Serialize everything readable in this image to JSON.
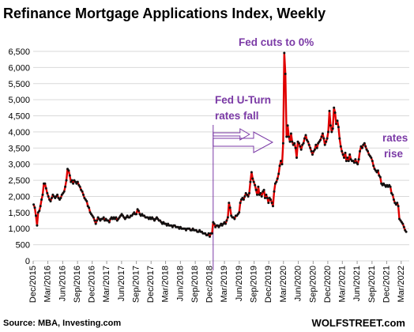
{
  "chart_data": {
    "type": "line",
    "title": "Refinance Mortgage Applications Index, Weekly",
    "ylim": [
      0,
      6500
    ],
    "y_ticks": [
      "0",
      "500",
      "1,000",
      "1,500",
      "2,000",
      "2,500",
      "3,000",
      "3,500",
      "4,000",
      "4,500",
      "5,000",
      "5,500",
      "6,000",
      "6,500"
    ],
    "x_ticks": [
      "Dec/2015",
      "Mar/2016",
      "Jun/2016",
      "Sep/2016",
      "Dec/2016",
      "Mar/2017",
      "Jun/2017",
      "Sep/2017",
      "Dec/2017",
      "Mar/2018",
      "Jun/2018",
      "Sep/2018",
      "Dec/2018",
      "Mar/2019",
      "Jun/2019",
      "Sep/2019",
      "Dec/2019",
      "Mar/2020",
      "Jun/2020",
      "Sep/2020",
      "Dec/2020",
      "Mar/2021",
      "Jun/2021",
      "Sep/2021",
      "Dec/2021",
      "Mar/2022"
    ],
    "grid": true,
    "series_color": "#e00000",
    "marker_color": "#111111",
    "annotations": [
      {
        "text": "Fed cuts to 0%"
      },
      {
        "text": "Fed U-Turn"
      },
      {
        "text": "rates fall"
      },
      {
        "text": "rates"
      },
      {
        "text": "rise"
      }
    ],
    "source": "Source: MBA, Investing.com",
    "brand": "WOLFSTREET.com",
    "points": [
      [
        "2015-12-04",
        1750
      ],
      [
        "2015-12-11",
        1650
      ],
      [
        "2015-12-18",
        1400
      ],
      [
        "2015-12-25",
        1100
      ],
      [
        "2016-01-01",
        1500
      ],
      [
        "2016-01-08",
        1550
      ],
      [
        "2016-01-15",
        1700
      ],
      [
        "2016-01-22",
        1900
      ],
      [
        "2016-01-29",
        2050
      ],
      [
        "2016-02-05",
        2400
      ],
      [
        "2016-02-12",
        2400
      ],
      [
        "2016-02-19",
        2250
      ],
      [
        "2016-02-26",
        2100
      ],
      [
        "2016-03-04",
        2000
      ],
      [
        "2016-03-11",
        1900
      ],
      [
        "2016-03-18",
        1850
      ],
      [
        "2016-03-25",
        1950
      ],
      [
        "2016-04-01",
        2050
      ],
      [
        "2016-04-08",
        2000
      ],
      [
        "2016-04-15",
        1950
      ],
      [
        "2016-04-22",
        2000
      ],
      [
        "2016-04-29",
        2050
      ],
      [
        "2016-05-06",
        1950
      ],
      [
        "2016-05-13",
        1900
      ],
      [
        "2016-05-20",
        1950
      ],
      [
        "2016-05-27",
        2050
      ],
      [
        "2016-06-03",
        2100
      ],
      [
        "2016-06-10",
        2150
      ],
      [
        "2016-06-17",
        2300
      ],
      [
        "2016-06-24",
        2500
      ],
      [
        "2016-07-01",
        2850
      ],
      [
        "2016-07-08",
        2800
      ],
      [
        "2016-07-15",
        2650
      ],
      [
        "2016-07-22",
        2450
      ],
      [
        "2016-07-29",
        2500
      ],
      [
        "2016-08-05",
        2400
      ],
      [
        "2016-08-12",
        2500
      ],
      [
        "2016-08-19",
        2450
      ],
      [
        "2016-08-26",
        2400
      ],
      [
        "2016-09-02",
        2450
      ],
      [
        "2016-09-09",
        2350
      ],
      [
        "2016-09-16",
        2300
      ],
      [
        "2016-09-23",
        2200
      ],
      [
        "2016-09-30",
        2150
      ],
      [
        "2016-10-07",
        2050
      ],
      [
        "2016-10-14",
        1950
      ],
      [
        "2016-10-21",
        1900
      ],
      [
        "2016-10-28",
        1850
      ],
      [
        "2016-11-04",
        1700
      ],
      [
        "2016-11-11",
        1650
      ],
      [
        "2016-11-18",
        1500
      ],
      [
        "2016-11-25",
        1450
      ],
      [
        "2016-12-02",
        1400
      ],
      [
        "2016-12-09",
        1350
      ],
      [
        "2016-12-16",
        1250
      ],
      [
        "2016-12-23",
        1150
      ],
      [
        "2016-12-30",
        1250
      ],
      [
        "2017-01-06",
        1350
      ],
      [
        "2017-01-13",
        1300
      ],
      [
        "2017-01-20",
        1250
      ],
      [
        "2017-01-27",
        1300
      ],
      [
        "2017-02-03",
        1300
      ],
      [
        "2017-02-10",
        1350
      ],
      [
        "2017-02-17",
        1250
      ],
      [
        "2017-02-24",
        1300
      ],
      [
        "2017-03-03",
        1250
      ],
      [
        "2017-03-10",
        1250
      ],
      [
        "2017-03-17",
        1200
      ],
      [
        "2017-03-24",
        1300
      ],
      [
        "2017-03-31",
        1350
      ],
      [
        "2017-04-07",
        1300
      ],
      [
        "2017-04-14",
        1350
      ],
      [
        "2017-04-21",
        1300
      ],
      [
        "2017-04-28",
        1350
      ],
      [
        "2017-05-05",
        1250
      ],
      [
        "2017-05-12",
        1300
      ],
      [
        "2017-05-19",
        1350
      ],
      [
        "2017-05-26",
        1400
      ],
      [
        "2017-06-02",
        1450
      ],
      [
        "2017-06-09",
        1400
      ],
      [
        "2017-06-16",
        1350
      ],
      [
        "2017-06-23",
        1300
      ],
      [
        "2017-06-30",
        1350
      ],
      [
        "2017-07-07",
        1400
      ],
      [
        "2017-07-14",
        1350
      ],
      [
        "2017-07-21",
        1350
      ],
      [
        "2017-07-28",
        1400
      ],
      [
        "2017-08-04",
        1400
      ],
      [
        "2017-08-11",
        1450
      ],
      [
        "2017-08-18",
        1500
      ],
      [
        "2017-08-25",
        1450
      ],
      [
        "2017-09-01",
        1450
      ],
      [
        "2017-09-08",
        1600
      ],
      [
        "2017-09-15",
        1550
      ],
      [
        "2017-09-22",
        1450
      ],
      [
        "2017-09-29",
        1400
      ],
      [
        "2017-10-06",
        1450
      ],
      [
        "2017-10-13",
        1400
      ],
      [
        "2017-10-20",
        1400
      ],
      [
        "2017-10-27",
        1350
      ],
      [
        "2017-11-03",
        1350
      ],
      [
        "2017-11-10",
        1350
      ],
      [
        "2017-11-17",
        1300
      ],
      [
        "2017-11-24",
        1350
      ],
      [
        "2017-12-01",
        1300
      ],
      [
        "2017-12-08",
        1350
      ],
      [
        "2017-12-15",
        1300
      ],
      [
        "2017-12-22",
        1250
      ],
      [
        "2017-12-29",
        1300
      ],
      [
        "2018-01-05",
        1350
      ],
      [
        "2018-01-12",
        1300
      ],
      [
        "2018-01-19",
        1250
      ],
      [
        "2018-01-26",
        1250
      ],
      [
        "2018-02-02",
        1200
      ],
      [
        "2018-02-09",
        1150
      ],
      [
        "2018-02-16",
        1200
      ],
      [
        "2018-02-23",
        1150
      ],
      [
        "2018-03-02",
        1150
      ],
      [
        "2018-03-09",
        1100
      ],
      [
        "2018-03-16",
        1150
      ],
      [
        "2018-03-23",
        1100
      ],
      [
        "2018-03-30",
        1100
      ],
      [
        "2018-04-06",
        1100
      ],
      [
        "2018-04-13",
        1050
      ],
      [
        "2018-04-20",
        1100
      ],
      [
        "2018-04-27",
        1100
      ],
      [
        "2018-05-04",
        1050
      ],
      [
        "2018-05-11",
        1050
      ],
      [
        "2018-05-18",
        1050
      ],
      [
        "2018-05-25",
        1000
      ],
      [
        "2018-06-01",
        1050
      ],
      [
        "2018-06-08",
        1000
      ],
      [
        "2018-06-15",
        1000
      ],
      [
        "2018-06-22",
        1000
      ],
      [
        "2018-06-29",
        1000
      ],
      [
        "2018-07-06",
        950
      ],
      [
        "2018-07-13",
        1000
      ],
      [
        "2018-07-20",
        1000
      ],
      [
        "2018-07-27",
        1000
      ],
      [
        "2018-08-03",
        950
      ],
      [
        "2018-08-10",
        950
      ],
      [
        "2018-08-17",
        1000
      ],
      [
        "2018-08-24",
        950
      ],
      [
        "2018-08-31",
        950
      ],
      [
        "2018-09-07",
        950
      ],
      [
        "2018-09-14",
        900
      ],
      [
        "2018-09-21",
        900
      ],
      [
        "2018-09-28",
        950
      ],
      [
        "2018-10-05",
        900
      ],
      [
        "2018-10-12",
        900
      ],
      [
        "2018-10-19",
        850
      ],
      [
        "2018-10-26",
        850
      ],
      [
        "2018-11-02",
        850
      ],
      [
        "2018-11-09",
        800
      ],
      [
        "2018-11-16",
        800
      ],
      [
        "2018-11-23",
        850
      ],
      [
        "2018-11-30",
        750
      ],
      [
        "2018-12-07",
        850
      ],
      [
        "2018-12-14",
        850
      ],
      [
        "2018-12-21",
        1200
      ],
      [
        "2018-12-28",
        1150
      ],
      [
        "2019-01-04",
        1050
      ],
      [
        "2019-01-11",
        1100
      ],
      [
        "2019-01-18",
        1100
      ],
      [
        "2019-01-25",
        1050
      ],
      [
        "2019-02-01",
        1100
      ],
      [
        "2019-02-08",
        1150
      ],
      [
        "2019-02-15",
        1100
      ],
      [
        "2019-02-22",
        1150
      ],
      [
        "2019-03-01",
        1200
      ],
      [
        "2019-03-08",
        1150
      ],
      [
        "2019-03-15",
        1250
      ],
      [
        "2019-03-22",
        1350
      ],
      [
        "2019-03-29",
        1800
      ],
      [
        "2019-04-05",
        1650
      ],
      [
        "2019-04-12",
        1400
      ],
      [
        "2019-04-19",
        1350
      ],
      [
        "2019-04-26",
        1350
      ],
      [
        "2019-05-03",
        1300
      ],
      [
        "2019-05-10",
        1400
      ],
      [
        "2019-05-17",
        1400
      ],
      [
        "2019-05-24",
        1450
      ],
      [
        "2019-05-31",
        1500
      ],
      [
        "2019-06-07",
        1800
      ],
      [
        "2019-06-14",
        1900
      ],
      [
        "2019-06-21",
        1950
      ],
      [
        "2019-06-28",
        1900
      ],
      [
        "2019-07-05",
        2000
      ],
      [
        "2019-07-12",
        2100
      ],
      [
        "2019-07-19",
        2050
      ],
      [
        "2019-07-26",
        2000
      ],
      [
        "2019-08-02",
        2100
      ],
      [
        "2019-08-09",
        2450
      ],
      [
        "2019-08-16",
        2750
      ],
      [
        "2019-08-23",
        2550
      ],
      [
        "2019-08-30",
        2450
      ],
      [
        "2019-09-06",
        2350
      ],
      [
        "2019-09-13",
        2200
      ],
      [
        "2019-09-20",
        2050
      ],
      [
        "2019-09-27",
        2300
      ],
      [
        "2019-10-04",
        2050
      ],
      [
        "2019-10-11",
        2100
      ],
      [
        "2019-10-18",
        2000
      ],
      [
        "2019-10-25",
        2150
      ],
      [
        "2019-11-01",
        2200
      ],
      [
        "2019-11-08",
        1950
      ],
      [
        "2019-11-15",
        2050
      ],
      [
        "2019-11-22",
        1950
      ],
      [
        "2019-11-29",
        1800
      ],
      [
        "2019-12-06",
        1950
      ],
      [
        "2019-12-13",
        1900
      ],
      [
        "2019-12-20",
        1800
      ],
      [
        "2019-12-27",
        1700
      ],
      [
        "2020-01-03",
        2150
      ],
      [
        "2020-01-10",
        2400
      ],
      [
        "2020-01-17",
        2450
      ],
      [
        "2020-01-24",
        2550
      ],
      [
        "2020-01-31",
        2700
      ],
      [
        "2020-02-07",
        2950
      ],
      [
        "2020-02-14",
        3100
      ],
      [
        "2020-02-21",
        3000
      ],
      [
        "2020-02-28",
        3650
      ],
      [
        "2020-03-06",
        6450
      ],
      [
        "2020-03-13",
        5800
      ],
      [
        "2020-03-20",
        3850
      ],
      [
        "2020-03-27",
        4200
      ],
      [
        "2020-04-03",
        3850
      ],
      [
        "2020-04-10",
        3700
      ],
      [
        "2020-04-17",
        3950
      ],
      [
        "2020-04-24",
        3700
      ],
      [
        "2020-05-01",
        3600
      ],
      [
        "2020-05-08",
        3650
      ],
      [
        "2020-05-15",
        3500
      ],
      [
        "2020-05-22",
        3200
      ],
      [
        "2020-05-29",
        3700
      ],
      [
        "2020-06-05",
        3650
      ],
      [
        "2020-06-12",
        3550
      ],
      [
        "2020-06-19",
        3450
      ],
      [
        "2020-06-26",
        3600
      ],
      [
        "2020-07-03",
        3650
      ],
      [
        "2020-07-10",
        3800
      ],
      [
        "2020-07-17",
        3900
      ],
      [
        "2020-07-24",
        3750
      ],
      [
        "2020-07-31",
        3700
      ],
      [
        "2020-08-07",
        3600
      ],
      [
        "2020-08-14",
        3500
      ],
      [
        "2020-08-21",
        3400
      ],
      [
        "2020-08-28",
        3300
      ],
      [
        "2020-09-04",
        3400
      ],
      [
        "2020-09-11",
        3450
      ],
      [
        "2020-09-18",
        3600
      ],
      [
        "2020-09-25",
        3500
      ],
      [
        "2020-10-02",
        3650
      ],
      [
        "2020-10-09",
        3700
      ],
      [
        "2020-10-16",
        3750
      ],
      [
        "2020-10-23",
        3850
      ],
      [
        "2020-10-30",
        3950
      ],
      [
        "2020-11-06",
        3800
      ],
      [
        "2020-11-13",
        3600
      ],
      [
        "2020-11-20",
        3700
      ],
      [
        "2020-11-27",
        3800
      ],
      [
        "2020-12-04",
        4000
      ],
      [
        "2020-12-11",
        4650
      ],
      [
        "2020-12-18",
        4200
      ],
      [
        "2020-12-25",
        4000
      ],
      [
        "2021-01-01",
        4100
      ],
      [
        "2021-01-08",
        4750
      ],
      [
        "2021-01-15",
        4600
      ],
      [
        "2021-01-22",
        4250
      ],
      [
        "2021-01-29",
        4350
      ],
      [
        "2021-02-05",
        4150
      ],
      [
        "2021-02-12",
        3800
      ],
      [
        "2021-02-19",
        3550
      ],
      [
        "2021-02-26",
        3400
      ],
      [
        "2021-03-05",
        3300
      ],
      [
        "2021-03-12",
        3200
      ],
      [
        "2021-03-19",
        3350
      ],
      [
        "2021-03-26",
        3100
      ],
      [
        "2021-04-02",
        3200
      ],
      [
        "2021-04-09",
        3100
      ],
      [
        "2021-04-16",
        3300
      ],
      [
        "2021-04-23",
        3150
      ],
      [
        "2021-04-30",
        3100
      ],
      [
        "2021-05-07",
        3100
      ],
      [
        "2021-05-14",
        3050
      ],
      [
        "2021-05-21",
        3150
      ],
      [
        "2021-05-28",
        3050
      ],
      [
        "2021-06-04",
        3000
      ],
      [
        "2021-06-11",
        3150
      ],
      [
        "2021-06-18",
        3400
      ],
      [
        "2021-06-25",
        3550
      ],
      [
        "2021-07-02",
        3500
      ],
      [
        "2021-07-09",
        3600
      ],
      [
        "2021-07-16",
        3650
      ],
      [
        "2021-07-23",
        3550
      ],
      [
        "2021-07-30",
        3450
      ],
      [
        "2021-08-06",
        3400
      ],
      [
        "2021-08-13",
        3300
      ],
      [
        "2021-08-20",
        3250
      ],
      [
        "2021-08-27",
        3200
      ],
      [
        "2021-09-03",
        3100
      ],
      [
        "2021-09-10",
        2950
      ],
      [
        "2021-09-17",
        2850
      ],
      [
        "2021-09-24",
        2800
      ],
      [
        "2021-10-01",
        2750
      ],
      [
        "2021-10-08",
        2800
      ],
      [
        "2021-10-15",
        2650
      ],
      [
        "2021-10-22",
        2600
      ],
      [
        "2021-10-29",
        2400
      ],
      [
        "2021-11-05",
        2350
      ],
      [
        "2021-11-12",
        2400
      ],
      [
        "2021-11-19",
        2350
      ],
      [
        "2021-11-26",
        2300
      ],
      [
        "2021-12-03",
        2350
      ],
      [
        "2021-12-10",
        2300
      ],
      [
        "2021-12-17",
        2350
      ],
      [
        "2021-12-24",
        2300
      ],
      [
        "2021-12-31",
        2100
      ],
      [
        "2022-01-07",
        2050
      ],
      [
        "2022-01-14",
        1900
      ],
      [
        "2022-01-21",
        1800
      ],
      [
        "2022-01-28",
        1750
      ],
      [
        "2022-02-04",
        1800
      ],
      [
        "2022-02-11",
        1700
      ],
      [
        "2022-02-18",
        1300
      ],
      [
        "2022-02-25",
        1250
      ],
      [
        "2022-03-04",
        1200
      ],
      [
        "2022-03-11",
        1150
      ],
      [
        "2022-03-18",
        1050
      ],
      [
        "2022-03-25",
        950
      ],
      [
        "2022-04-01",
        900
      ]
    ]
  }
}
